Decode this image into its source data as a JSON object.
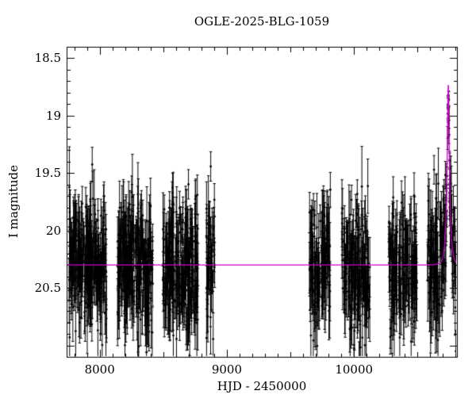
{
  "chart_data": {
    "type": "scatter",
    "title": "OGLE-2025-BLG-1059",
    "xlabel": "HJD - 2450000",
    "ylabel": "I magnitude",
    "x_range": [
      7740,
      10810
    ],
    "y_range_mag": [
      21.1,
      18.4
    ],
    "y_axis_inverted": true,
    "x_ticks_major": [
      8000,
      9000,
      10000
    ],
    "x_tick_minor_step": 100,
    "y_ticks_major": [
      18.5,
      19,
      19.5,
      20,
      20.5
    ],
    "y_tick_minor_step": 0.1,
    "grid": false,
    "legend": false,
    "point_color": "#000000",
    "model_color": "#cc00cc",
    "background_color": "#ffffff",
    "baseline_mag": 20.3,
    "scatter_sigma": 0.27,
    "errorbar_mag_range": [
      0.12,
      0.4
    ],
    "seed": 7,
    "seasons": [
      {
        "x_start": 7760,
        "x_end": 8055,
        "n": 260
      },
      {
        "x_start": 8140,
        "x_end": 8420,
        "n": 250
      },
      {
        "x_start": 8495,
        "x_end": 8775,
        "n": 240
      },
      {
        "x_start": 8840,
        "x_end": 8905,
        "n": 50
      },
      {
        "x_start": 9650,
        "x_end": 9815,
        "n": 120
      },
      {
        "x_start": 9905,
        "x_end": 10125,
        "n": 170
      },
      {
        "x_start": 10270,
        "x_end": 10495,
        "n": 170
      },
      {
        "x_start": 10580,
        "x_end": 10805,
        "n": 175
      }
    ],
    "model": {
      "type": "paczynski",
      "t0": 10742,
      "tE": 22,
      "u0": 0.24,
      "I0": 20.3,
      "peak_mag": 18.73
    }
  }
}
